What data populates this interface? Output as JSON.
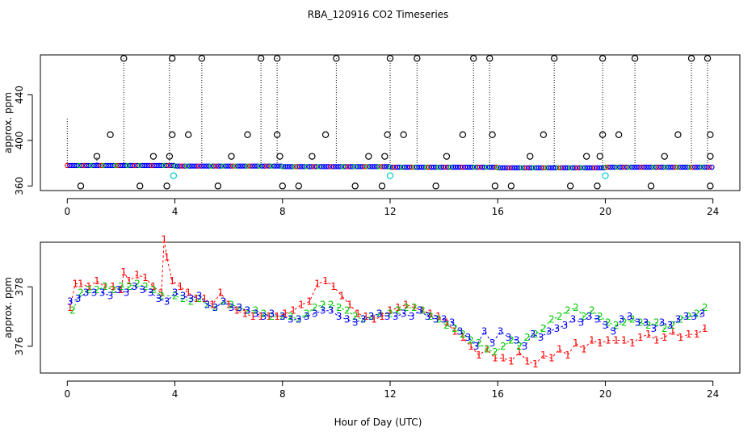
{
  "title": "RBA_120916  CO2 Timeseries",
  "xlabel": "Hour of Day (UTC)",
  "colors": {
    "s1": "#ff0000",
    "s2": "#00cc00",
    "s3": "#0000ff",
    "s4": "#00cccc",
    "spike": "#000000"
  },
  "chart_data": [
    {
      "type": "scatter",
      "ylabel": "approx. ppm",
      "xlim": [
        -1,
        25
      ],
      "ylim": [
        356,
        475
      ],
      "xticks": [
        0,
        4,
        8,
        12,
        16,
        20,
        24
      ],
      "yticks": [
        360,
        400,
        440
      ],
      "spikes": [
        {
          "x": 0.0,
          "y": 420
        },
        {
          "x": 1.1,
          "y": 385
        },
        {
          "x": 2.1,
          "y": 472
        },
        {
          "x": 3.8,
          "y": 472
        },
        {
          "x": 5.0,
          "y": 472
        },
        {
          "x": 7.2,
          "y": 472
        },
        {
          "x": 7.8,
          "y": 472
        },
        {
          "x": 10.0,
          "y": 472
        },
        {
          "x": 12.0,
          "y": 472
        },
        {
          "x": 13.0,
          "y": 472
        },
        {
          "x": 15.1,
          "y": 472
        },
        {
          "x": 15.7,
          "y": 472
        },
        {
          "x": 18.1,
          "y": 472
        },
        {
          "x": 19.9,
          "y": 472
        },
        {
          "x": 21.1,
          "y": 472
        },
        {
          "x": 23.2,
          "y": 472
        },
        {
          "x": 23.8,
          "y": 472
        }
      ],
      "markers_high": [
        {
          "x": 2.1,
          "y": 472
        },
        {
          "x": 3.9,
          "y": 472
        },
        {
          "x": 5.0,
          "y": 472
        },
        {
          "x": 7.2,
          "y": 472
        },
        {
          "x": 7.8,
          "y": 472
        },
        {
          "x": 10.0,
          "y": 472
        },
        {
          "x": 12.0,
          "y": 472
        },
        {
          "x": 13.0,
          "y": 472
        },
        {
          "x": 15.1,
          "y": 472
        },
        {
          "x": 15.7,
          "y": 472
        },
        {
          "x": 18.1,
          "y": 472
        },
        {
          "x": 19.9,
          "y": 472
        },
        {
          "x": 21.1,
          "y": 472
        },
        {
          "x": 23.2,
          "y": 472
        },
        {
          "x": 23.8,
          "y": 472
        },
        {
          "x": 1.6,
          "y": 405
        },
        {
          "x": 3.9,
          "y": 405
        },
        {
          "x": 4.5,
          "y": 405
        },
        {
          "x": 6.7,
          "y": 405
        },
        {
          "x": 7.8,
          "y": 405
        },
        {
          "x": 9.6,
          "y": 405
        },
        {
          "x": 11.9,
          "y": 405
        },
        {
          "x": 12.5,
          "y": 405
        },
        {
          "x": 14.7,
          "y": 405
        },
        {
          "x": 15.8,
          "y": 405
        },
        {
          "x": 17.7,
          "y": 405
        },
        {
          "x": 19.9,
          "y": 405
        },
        {
          "x": 20.5,
          "y": 405
        },
        {
          "x": 22.7,
          "y": 405
        },
        {
          "x": 23.9,
          "y": 405
        },
        {
          "x": 1.1,
          "y": 386
        },
        {
          "x": 3.2,
          "y": 386
        },
        {
          "x": 3.8,
          "y": 386
        },
        {
          "x": 6.1,
          "y": 386
        },
        {
          "x": 7.9,
          "y": 386
        },
        {
          "x": 9.1,
          "y": 386
        },
        {
          "x": 11.2,
          "y": 386
        },
        {
          "x": 11.8,
          "y": 386
        },
        {
          "x": 14.1,
          "y": 386
        },
        {
          "x": 17.2,
          "y": 386
        },
        {
          "x": 19.3,
          "y": 386
        },
        {
          "x": 19.8,
          "y": 386
        },
        {
          "x": 22.2,
          "y": 386
        },
        {
          "x": 23.9,
          "y": 386
        },
        {
          "x": 0.5,
          "y": 360
        },
        {
          "x": 2.7,
          "y": 360
        },
        {
          "x": 3.7,
          "y": 360
        },
        {
          "x": 5.6,
          "y": 360
        },
        {
          "x": 8.0,
          "y": 360
        },
        {
          "x": 8.6,
          "y": 360
        },
        {
          "x": 10.7,
          "y": 360
        },
        {
          "x": 11.7,
          "y": 360
        },
        {
          "x": 13.7,
          "y": 360
        },
        {
          "x": 15.9,
          "y": 360
        },
        {
          "x": 16.5,
          "y": 360
        },
        {
          "x": 18.7,
          "y": 360
        },
        {
          "x": 19.7,
          "y": 360
        },
        {
          "x": 21.7,
          "y": 360
        },
        {
          "x": 23.9,
          "y": 360
        }
      ],
      "series4_points": [
        {
          "x": 3.95,
          "y": 369
        },
        {
          "x": 12.0,
          "y": 369
        },
        {
          "x": 20.0,
          "y": 369
        }
      ],
      "baseline": [
        {
          "from": 0.0,
          "to": 4.0,
          "y": 378
        },
        {
          "from": 4.0,
          "to": 8.0,
          "y": 377.5
        },
        {
          "from": 8.0,
          "to": 12.0,
          "y": 377
        },
        {
          "from": 12.0,
          "to": 16.0,
          "y": 376.5
        },
        {
          "from": 16.0,
          "to": 20.0,
          "y": 376
        },
        {
          "from": 20.0,
          "to": 24.0,
          "y": 376.5
        }
      ]
    },
    {
      "type": "line",
      "ylabel": "approx. ppm",
      "xlim": [
        -1,
        25
      ],
      "ylim": [
        375.1,
        379.5
      ],
      "xticks": [
        0,
        4,
        8,
        12,
        16,
        20,
        24
      ],
      "yticks": [
        376,
        378
      ],
      "series": [
        {
          "symbol": "1",
          "x": [
            0.1,
            0.3,
            0.5,
            0.8,
            1.1,
            1.4,
            1.7,
            2.0,
            2.1,
            2.3,
            2.6,
            2.9,
            3.2,
            3.5,
            3.6,
            3.7,
            3.9,
            4.2,
            4.5,
            4.8,
            5.1,
            5.4,
            5.7,
            6.0,
            6.3,
            6.6,
            6.9,
            7.2,
            7.5,
            7.8,
            8.1,
            8.4,
            8.7,
            9.0,
            9.3,
            9.6,
            9.9,
            10.2,
            10.5,
            10.8,
            11.1,
            11.4,
            11.7,
            12.0,
            12.3,
            12.6,
            12.9,
            13.2,
            13.5,
            13.8,
            14.1,
            14.4,
            14.7,
            15.0,
            15.3,
            15.6,
            15.9,
            16.2,
            16.5,
            16.8,
            17.1,
            17.4,
            17.7,
            18.0,
            18.3,
            18.6,
            18.9,
            19.2,
            19.5,
            19.8,
            20.1,
            20.4,
            20.7,
            21.0,
            21.3,
            21.6,
            21.9,
            22.2,
            22.5,
            22.8,
            23.1,
            23.4,
            23.7
          ],
          "y": [
            377.3,
            378.1,
            378.1,
            378.0,
            378.2,
            378.0,
            378.0,
            377.9,
            378.5,
            378.2,
            378.4,
            378.3,
            378.0,
            377.8,
            379.6,
            379.0,
            378.2,
            378.0,
            377.8,
            377.6,
            377.6,
            377.4,
            377.8,
            377.4,
            377.2,
            377.1,
            377.0,
            377.0,
            377.0,
            377.0,
            377.1,
            377.2,
            377.4,
            377.5,
            378.1,
            378.2,
            378.0,
            377.7,
            377.4,
            377.1,
            377.0,
            376.9,
            377.0,
            377.2,
            377.3,
            377.4,
            377.3,
            377.2,
            377.1,
            377.0,
            376.8,
            376.5,
            376.3,
            376.0,
            375.7,
            375.9,
            375.6,
            375.6,
            375.5,
            375.8,
            375.5,
            375.4,
            375.7,
            375.6,
            375.9,
            375.7,
            376.1,
            375.9,
            376.2,
            376.1,
            376.2,
            376.2,
            376.2,
            376.1,
            376.3,
            376.4,
            376.2,
            376.3,
            376.5,
            376.3,
            376.4,
            376.4,
            376.6
          ]
        },
        {
          "symbol": "2",
          "x": [
            0.2,
            0.5,
            0.8,
            1.1,
            1.4,
            1.7,
            2.0,
            2.3,
            2.6,
            2.9,
            3.2,
            3.5,
            4.0,
            4.3,
            4.6,
            4.9,
            5.2,
            5.5,
            5.8,
            6.1,
            6.4,
            6.7,
            7.0,
            7.3,
            7.6,
            8.0,
            8.3,
            8.6,
            8.9,
            9.2,
            9.5,
            9.8,
            10.1,
            10.4,
            10.7,
            11.0,
            11.3,
            11.6,
            12.0,
            12.3,
            12.6,
            12.9,
            13.2,
            13.5,
            13.8,
            14.1,
            14.4,
            14.7,
            15.0,
            15.3,
            15.6,
            15.9,
            16.2,
            16.5,
            16.8,
            17.1,
            17.4,
            17.7,
            18.0,
            18.3,
            18.6,
            18.9,
            19.2,
            19.5,
            19.8,
            20.1,
            20.4,
            20.7,
            21.0,
            21.3,
            21.6,
            21.9,
            22.2,
            22.5,
            22.8,
            23.1,
            23.4,
            23.7
          ],
          "y": [
            377.2,
            377.8,
            377.9,
            377.9,
            378.0,
            377.9,
            378.0,
            378.0,
            378.1,
            378.0,
            377.9,
            377.7,
            377.7,
            377.6,
            377.5,
            377.6,
            377.4,
            377.3,
            377.5,
            377.4,
            377.3,
            377.2,
            377.2,
            377.1,
            377.0,
            377.0,
            377.0,
            376.9,
            377.1,
            377.3,
            377.4,
            377.4,
            377.3,
            377.2,
            377.0,
            376.9,
            377.0,
            377.1,
            377.1,
            377.2,
            377.3,
            377.3,
            377.2,
            377.0,
            376.9,
            376.7,
            376.6,
            376.4,
            376.2,
            376.1,
            375.9,
            375.8,
            376.0,
            376.2,
            376.0,
            376.3,
            376.4,
            376.6,
            376.9,
            377.0,
            377.2,
            377.3,
            377.0,
            377.2,
            377.0,
            376.8,
            376.7,
            376.8,
            376.9,
            376.8,
            376.7,
            376.8,
            376.6,
            376.7,
            376.9,
            377.0,
            377.1,
            377.3
          ]
        },
        {
          "symbol": "3",
          "x": [
            0.1,
            0.4,
            0.7,
            1.0,
            1.3,
            1.6,
            1.9,
            2.2,
            2.5,
            2.8,
            3.1,
            3.4,
            3.7,
            4.0,
            4.3,
            4.6,
            4.9,
            5.2,
            5.5,
            5.8,
            6.1,
            6.4,
            6.7,
            7.0,
            7.3,
            7.6,
            8.0,
            8.3,
            8.6,
            8.9,
            9.2,
            9.5,
            9.8,
            10.1,
            10.4,
            10.7,
            11.0,
            11.3,
            11.6,
            11.9,
            12.2,
            12.5,
            12.8,
            13.1,
            13.4,
            13.7,
            14.0,
            14.3,
            14.6,
            14.9,
            15.2,
            15.5,
            15.8,
            16.1,
            16.4,
            16.7,
            17.0,
            17.3,
            17.6,
            17.9,
            18.2,
            18.5,
            18.8,
            19.1,
            19.4,
            19.7,
            20.0,
            20.3,
            20.6,
            20.9,
            21.2,
            21.5,
            21.8,
            22.1,
            22.4,
            22.7,
            23.0,
            23.3,
            23.6
          ],
          "y": [
            377.5,
            377.6,
            377.8,
            377.8,
            377.8,
            377.7,
            377.9,
            377.8,
            378.0,
            377.9,
            377.8,
            377.6,
            377.5,
            377.8,
            377.7,
            377.6,
            377.7,
            377.4,
            377.3,
            377.5,
            377.3,
            377.3,
            377.2,
            377.1,
            377.0,
            377.1,
            377.0,
            376.9,
            376.9,
            377.0,
            377.1,
            377.2,
            377.2,
            377.0,
            376.9,
            376.8,
            376.9,
            377.0,
            377.1,
            377.0,
            377.0,
            377.1,
            377.0,
            377.2,
            377.0,
            376.9,
            376.9,
            376.8,
            376.5,
            376.3,
            376.0,
            376.5,
            376.1,
            376.5,
            376.3,
            376.2,
            376.0,
            376.4,
            376.3,
            376.5,
            376.6,
            376.7,
            376.9,
            376.8,
            377.0,
            376.9,
            376.7,
            376.5,
            376.9,
            377.0,
            376.8,
            376.8,
            376.6,
            376.8,
            376.7,
            376.9,
            377.0,
            377.0,
            377.1
          ]
        }
      ]
    }
  ]
}
